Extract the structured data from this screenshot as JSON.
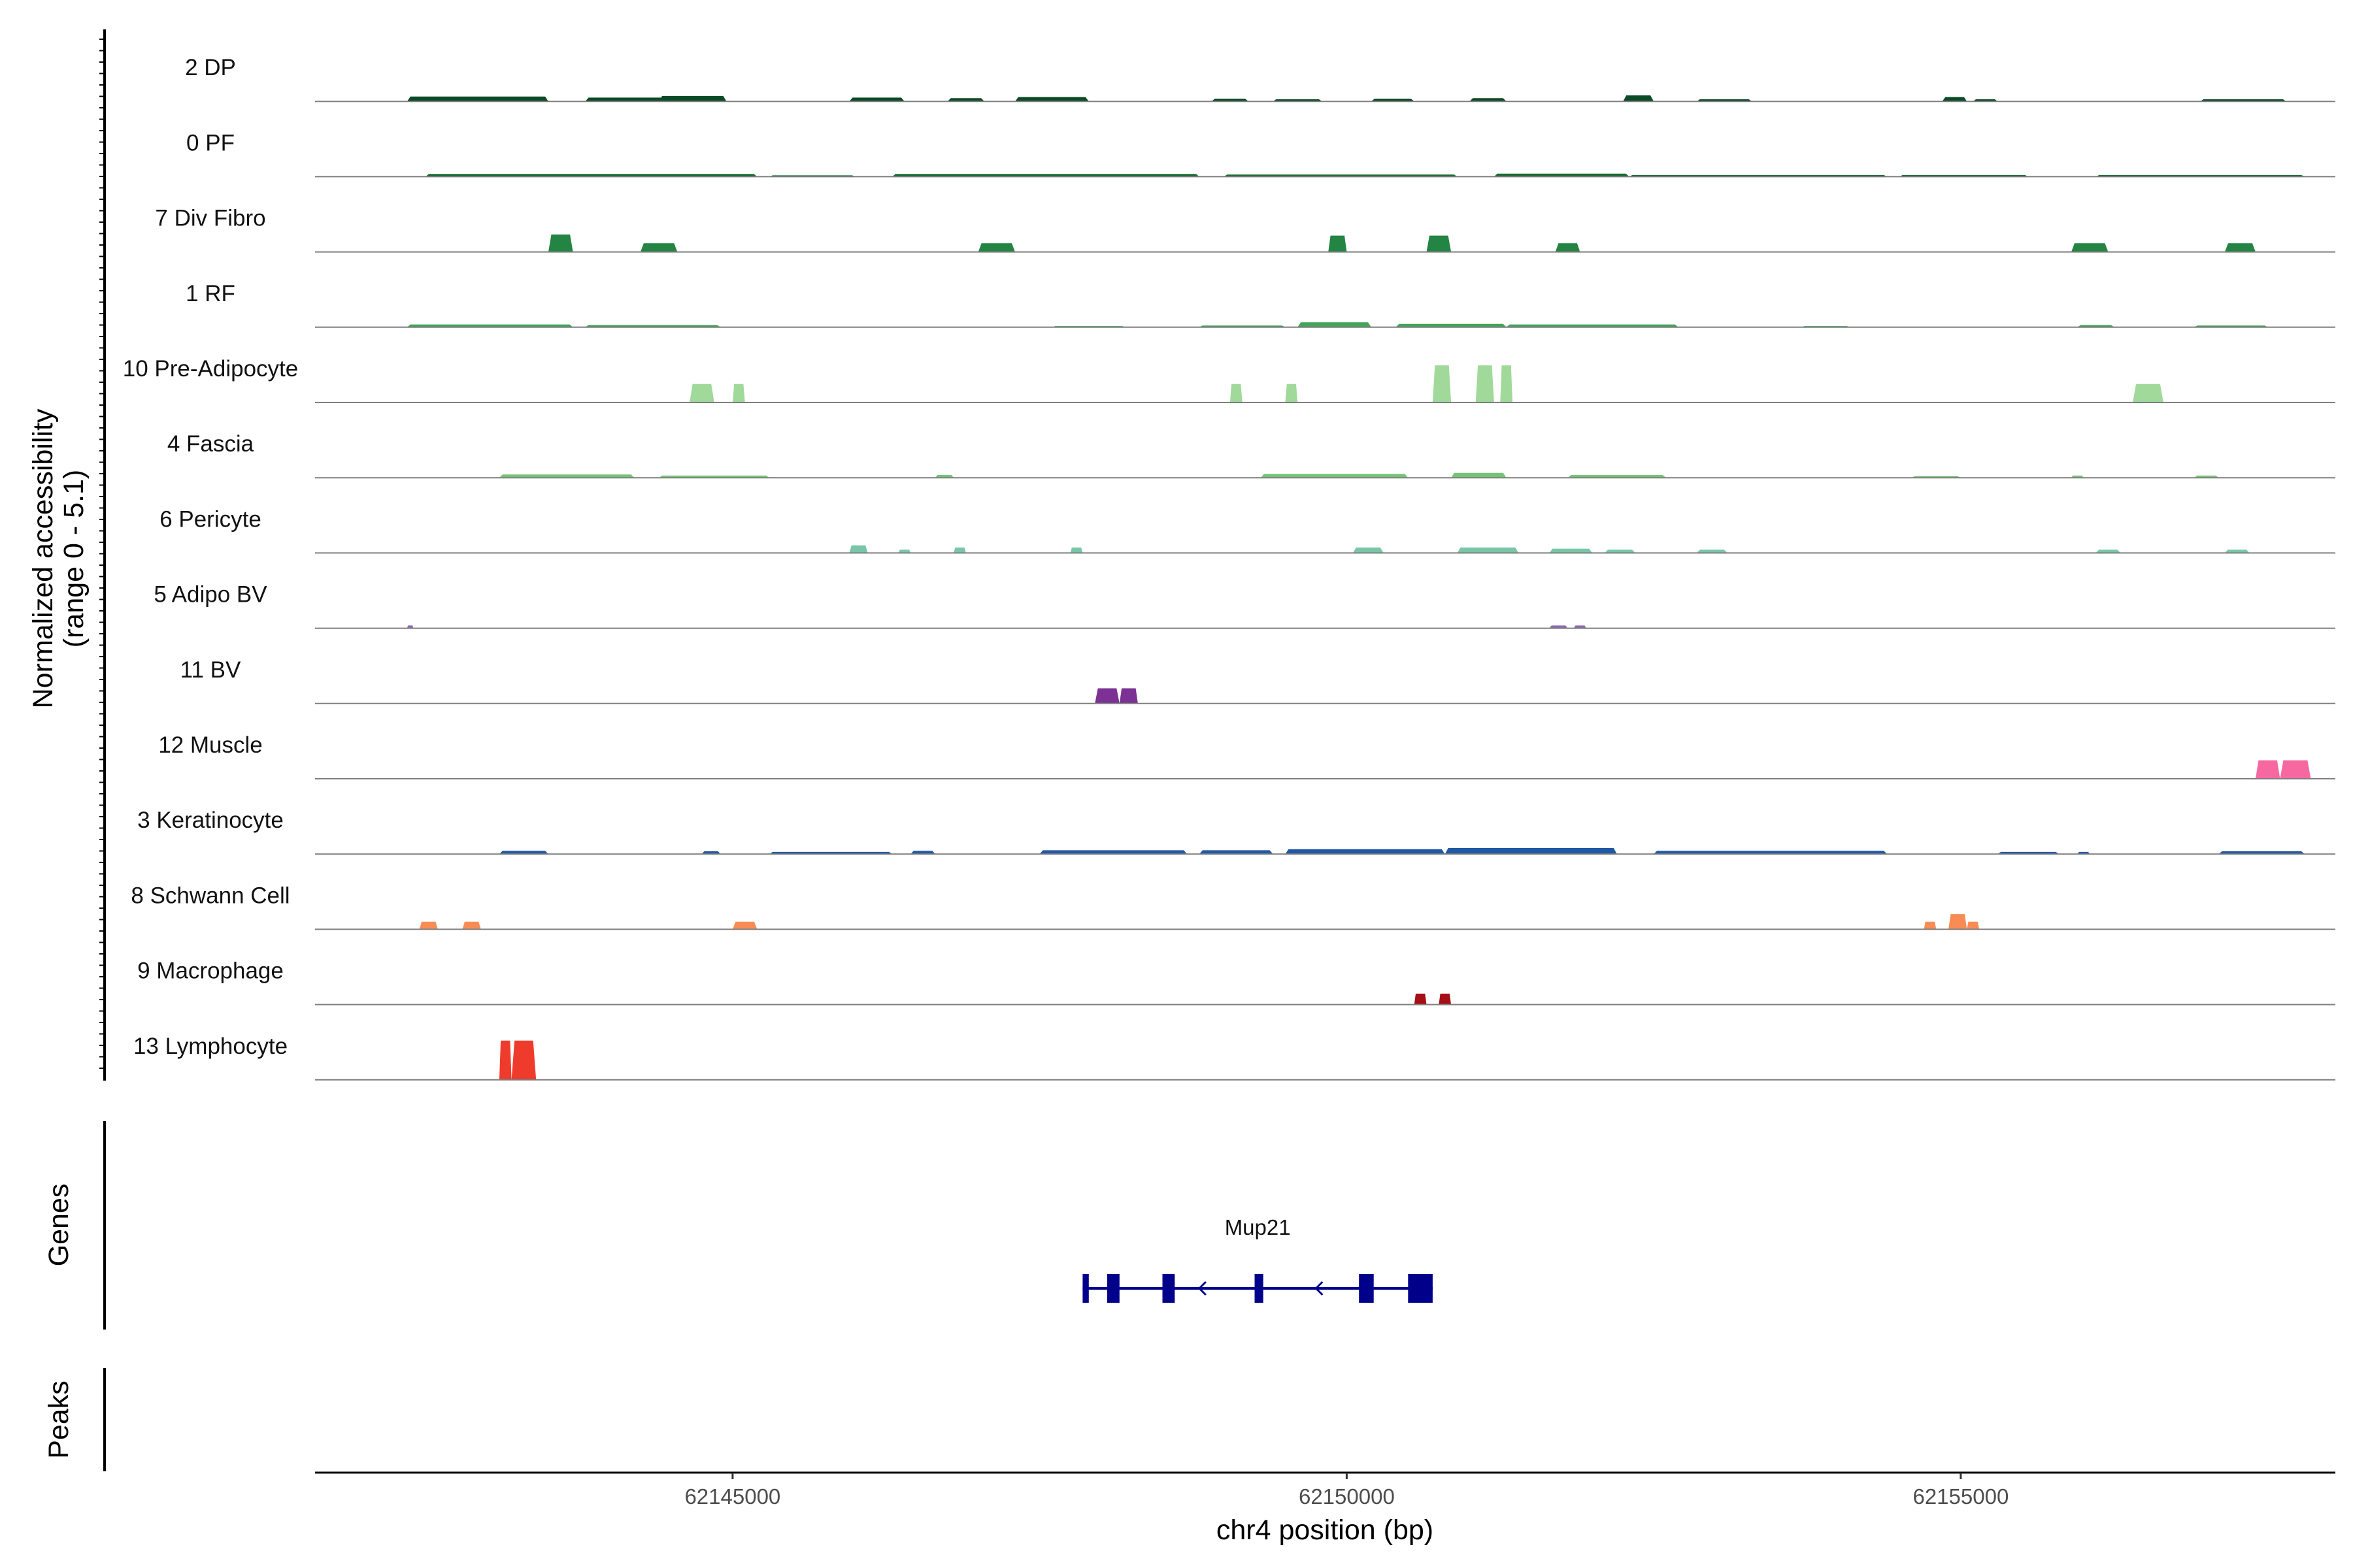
{
  "chart_data": {
    "type": "coverage",
    "xlabel": "chr4 position (bp)",
    "ylabel_line1": "Normalized accessibility",
    "ylabel_line2": "(range 0 - 5.1)",
    "genes_label": "Genes",
    "peaks_label": "Peaks",
    "xlim": [
      62141600,
      62158050
    ],
    "ylim": [
      0,
      5.1
    ],
    "x_ticks": [
      {
        "value": 62145000,
        "label": "62145000"
      },
      {
        "value": 62150000,
        "label": "62150000"
      },
      {
        "value": 62155000,
        "label": "62155000"
      }
    ],
    "tracks": [
      {
        "name": "2 DP",
        "color": "#0b4a26",
        "peaks": [
          {
            "s": 62142350,
            "e": 62143500,
            "h": 0.45
          },
          {
            "s": 62143800,
            "e": 62144450,
            "h": 0.35
          },
          {
            "s": 62144400,
            "e": 62144950,
            "h": 0.5
          },
          {
            "s": 62145950,
            "e": 62146400,
            "h": 0.35
          },
          {
            "s": 62146750,
            "e": 62147050,
            "h": 0.3
          },
          {
            "s": 62147300,
            "e": 62147900,
            "h": 0.4
          },
          {
            "s": 62148900,
            "e": 62149200,
            "h": 0.25
          },
          {
            "s": 62149400,
            "e": 62149800,
            "h": 0.2
          },
          {
            "s": 62150200,
            "e": 62150550,
            "h": 0.25
          },
          {
            "s": 62151000,
            "e": 62151300,
            "h": 0.3
          },
          {
            "s": 62152250,
            "e": 62152500,
            "h": 0.55
          },
          {
            "s": 62152850,
            "e": 62153300,
            "h": 0.2
          },
          {
            "s": 62154850,
            "e": 62155050,
            "h": 0.4
          },
          {
            "s": 62155100,
            "e": 62155300,
            "h": 0.2
          },
          {
            "s": 62156950,
            "e": 62157650,
            "h": 0.2
          }
        ]
      },
      {
        "name": "0 PF",
        "color": "#1a6b33",
        "peaks": [
          {
            "s": 62142500,
            "e": 62145200,
            "h": 0.25
          },
          {
            "s": 62145300,
            "e": 62146000,
            "h": 0.12
          },
          {
            "s": 62146300,
            "e": 62148800,
            "h": 0.25
          },
          {
            "s": 62149000,
            "e": 62150900,
            "h": 0.2
          },
          {
            "s": 62151200,
            "e": 62152300,
            "h": 0.28
          },
          {
            "s": 62152300,
            "e": 62154400,
            "h": 0.15
          },
          {
            "s": 62154500,
            "e": 62155550,
            "h": 0.15
          },
          {
            "s": 62156100,
            "e": 62157800,
            "h": 0.15
          }
        ]
      },
      {
        "name": "7 Div Fibro",
        "color": "#238443",
        "peaks": [
          {
            "s": 62143500,
            "e": 62143700,
            "h": 1.6
          },
          {
            "s": 62144250,
            "e": 62144550,
            "h": 0.8
          },
          {
            "s": 62147000,
            "e": 62147300,
            "h": 0.8
          },
          {
            "s": 62149850,
            "e": 62150000,
            "h": 1.5
          },
          {
            "s": 62150650,
            "e": 62150850,
            "h": 1.5
          },
          {
            "s": 62151700,
            "e": 62151900,
            "h": 0.8
          },
          {
            "s": 62155900,
            "e": 62156200,
            "h": 0.8
          },
          {
            "s": 62157150,
            "e": 62157400,
            "h": 0.8
          }
        ]
      },
      {
        "name": "1 RF",
        "color": "#41a559",
        "peaks": [
          {
            "s": 62142350,
            "e": 62143700,
            "h": 0.25
          },
          {
            "s": 62143800,
            "e": 62144900,
            "h": 0.2
          },
          {
            "s": 62147600,
            "e": 62148200,
            "h": 0.1
          },
          {
            "s": 62148800,
            "e": 62149500,
            "h": 0.15
          },
          {
            "s": 62149600,
            "e": 62150200,
            "h": 0.45
          },
          {
            "s": 62150400,
            "e": 62151300,
            "h": 0.3
          },
          {
            "s": 62151300,
            "e": 62152700,
            "h": 0.25
          },
          {
            "s": 62153700,
            "e": 62154100,
            "h": 0.1
          },
          {
            "s": 62155950,
            "e": 62156250,
            "h": 0.2
          },
          {
            "s": 62156900,
            "e": 62157500,
            "h": 0.15
          }
        ]
      },
      {
        "name": "10 Pre-Adipocyte",
        "color": "#a1d99b",
        "peaks": [
          {
            "s": 62144650,
            "e": 62144850,
            "h": 1.7
          },
          {
            "s": 62145000,
            "e": 62145100,
            "h": 1.7
          },
          {
            "s": 62149050,
            "e": 62149150,
            "h": 1.7
          },
          {
            "s": 62149500,
            "e": 62149600,
            "h": 1.7
          },
          {
            "s": 62150700,
            "e": 62150850,
            "h": 3.4
          },
          {
            "s": 62151050,
            "e": 62151200,
            "h": 3.4
          },
          {
            "s": 62151250,
            "e": 62151350,
            "h": 3.4
          },
          {
            "s": 62156400,
            "e": 62156650,
            "h": 1.7
          }
        ]
      },
      {
        "name": "4 Fascia",
        "color": "#74c476",
        "peaks": [
          {
            "s": 62143100,
            "e": 62144200,
            "h": 0.3
          },
          {
            "s": 62144400,
            "e": 62145300,
            "h": 0.2
          },
          {
            "s": 62146650,
            "e": 62146800,
            "h": 0.25
          },
          {
            "s": 62149300,
            "e": 62150500,
            "h": 0.35
          },
          {
            "s": 62150850,
            "e": 62151300,
            "h": 0.45
          },
          {
            "s": 62151800,
            "e": 62152600,
            "h": 0.25
          },
          {
            "s": 62154600,
            "e": 62155000,
            "h": 0.15
          },
          {
            "s": 62155900,
            "e": 62156000,
            "h": 0.2
          },
          {
            "s": 62156900,
            "e": 62157100,
            "h": 0.2
          }
        ]
      },
      {
        "name": "6 Pericyte",
        "color": "#78c6a6",
        "peaks": [
          {
            "s": 62145950,
            "e": 62146100,
            "h": 0.7
          },
          {
            "s": 62146350,
            "e": 62146450,
            "h": 0.3
          },
          {
            "s": 62146800,
            "e": 62146900,
            "h": 0.5
          },
          {
            "s": 62147750,
            "e": 62147850,
            "h": 0.5
          },
          {
            "s": 62150050,
            "e": 62150300,
            "h": 0.5
          },
          {
            "s": 62150900,
            "e": 62151400,
            "h": 0.5
          },
          {
            "s": 62151650,
            "e": 62152000,
            "h": 0.4
          },
          {
            "s": 62152100,
            "e": 62152350,
            "h": 0.3
          },
          {
            "s": 62152850,
            "e": 62153100,
            "h": 0.3
          },
          {
            "s": 62156100,
            "e": 62156300,
            "h": 0.3
          },
          {
            "s": 62157150,
            "e": 62157350,
            "h": 0.3
          }
        ]
      },
      {
        "name": "5 Adipo BV",
        "color": "#8c6bb1",
        "peaks": [
          {
            "s": 62142350,
            "e": 62142400,
            "h": 0.25
          },
          {
            "s": 62151650,
            "e": 62151800,
            "h": 0.25
          },
          {
            "s": 62151850,
            "e": 62151950,
            "h": 0.25
          }
        ]
      },
      {
        "name": "11 BV",
        "color": "#7b3294",
        "peaks": [
          {
            "s": 62147950,
            "e": 62148150,
            "h": 1.4
          },
          {
            "s": 62148150,
            "e": 62148300,
            "h": 1.4
          }
        ]
      },
      {
        "name": "12 Muscle",
        "color": "#f768a1",
        "peaks": [
          {
            "s": 62157400,
            "e": 62157600,
            "h": 1.7
          },
          {
            "s": 62157600,
            "e": 62157850,
            "h": 1.7
          }
        ]
      },
      {
        "name": "3 Keratinocyte",
        "color": "#2158a6",
        "peaks": [
          {
            "s": 62143100,
            "e": 62143500,
            "h": 0.3
          },
          {
            "s": 62144750,
            "e": 62144900,
            "h": 0.25
          },
          {
            "s": 62145300,
            "e": 62146300,
            "h": 0.2
          },
          {
            "s": 62146450,
            "e": 62146650,
            "h": 0.3
          },
          {
            "s": 62147500,
            "e": 62148700,
            "h": 0.35
          },
          {
            "s": 62148800,
            "e": 62149400,
            "h": 0.35
          },
          {
            "s": 62149500,
            "e": 62150800,
            "h": 0.45
          },
          {
            "s": 62150800,
            "e": 62152200,
            "h": 0.55
          },
          {
            "s": 62152500,
            "e": 62154400,
            "h": 0.3
          },
          {
            "s": 62155300,
            "e": 62155800,
            "h": 0.2
          },
          {
            "s": 62155950,
            "e": 62156050,
            "h": 0.2
          },
          {
            "s": 62157100,
            "e": 62157800,
            "h": 0.25
          }
        ]
      },
      {
        "name": "8 Schwann Cell",
        "color": "#f98c55",
        "peaks": [
          {
            "s": 62142450,
            "e": 62142600,
            "h": 0.7
          },
          {
            "s": 62142800,
            "e": 62142950,
            "h": 0.7
          },
          {
            "s": 62145000,
            "e": 62145200,
            "h": 0.7
          },
          {
            "s": 62154700,
            "e": 62154800,
            "h": 0.7
          },
          {
            "s": 62154900,
            "e": 62155050,
            "h": 1.4
          },
          {
            "s": 62155050,
            "e": 62155150,
            "h": 0.7
          }
        ]
      },
      {
        "name": "9 Macrophage",
        "color": "#a50f15",
        "peaks": [
          {
            "s": 62150550,
            "e": 62150650,
            "h": 1.0
          },
          {
            "s": 62150750,
            "e": 62150850,
            "h": 1.0
          }
        ]
      },
      {
        "name": "13 Lymphocyte",
        "color": "#ef3b2c",
        "peaks": [
          {
            "s": 62143100,
            "e": 62143200,
            "h": 3.6
          },
          {
            "s": 62143200,
            "e": 62143400,
            "h": 3.6
          }
        ]
      }
    ],
    "gene": {
      "name": "Mup21",
      "start": 62147850,
      "end": 62150700,
      "strand": "-",
      "color": "#00008b",
      "exons": [
        {
          "s": 62147850,
          "e": 62147900
        },
        {
          "s": 62148050,
          "e": 62148150
        },
        {
          "s": 62148500,
          "e": 62148600
        },
        {
          "s": 62149250,
          "e": 62149320
        },
        {
          "s": 62150100,
          "e": 62150220
        },
        {
          "s": 62150500,
          "e": 62150700
        }
      ],
      "arrows": [
        62148800,
        62149750
      ]
    }
  }
}
